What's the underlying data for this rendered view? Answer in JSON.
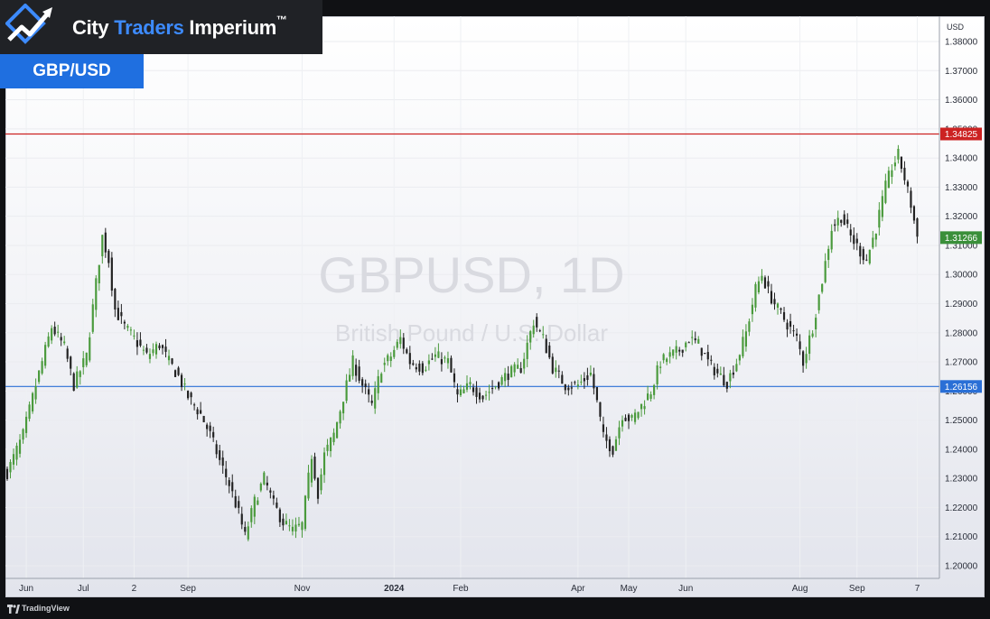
{
  "brand": {
    "name_part1": "City ",
    "name_accent": "Traders",
    "name_part2": " Imperium",
    "trademark": "™",
    "accent_color": "#3d8bff"
  },
  "pair_badge": "GBP/USD",
  "footer": {
    "platform": "TradingView"
  },
  "watermark": {
    "symbol": "GBPUSD, 1D",
    "description": "British Pound / U.S. Dollar"
  },
  "chart_data": {
    "type": "candlestick",
    "y_axis": {
      "unit": "USD",
      "ylim": [
        1.195,
        1.388
      ],
      "ticks": [
        "1.38000",
        "1.37000",
        "1.36000",
        "1.35000",
        "1.34000",
        "1.33000",
        "1.32000",
        "1.31000",
        "1.30000",
        "1.29000",
        "1.28000",
        "1.27000",
        "1.26000",
        "1.25000",
        "1.24000",
        "1.23000",
        "1.22000",
        "1.21000",
        "1.20000"
      ]
    },
    "x_axis": {
      "labels": [
        {
          "text": "Jun",
          "t": 6
        },
        {
          "text": "Jul",
          "t": 24
        },
        {
          "text": "2",
          "t": 40
        },
        {
          "text": "Sep",
          "t": 57
        },
        {
          "text": "Nov",
          "t": 93
        },
        {
          "text": "2024",
          "t": 122
        },
        {
          "text": "Feb",
          "t": 143
        },
        {
          "text": "Apr",
          "t": 180
        },
        {
          "text": "May",
          "t": 196
        },
        {
          "text": "Jun",
          "t": 214
        },
        {
          "text": "Aug",
          "t": 250
        },
        {
          "text": "Sep",
          "t": 268
        },
        {
          "text": "7",
          "t": 287
        }
      ],
      "t_max": 290
    },
    "horizontal_lines": [
      {
        "value": 1.34825,
        "label": "1.34825",
        "color": "#cc2222"
      },
      {
        "value": 1.26156,
        "label": "1.26156",
        "color": "#2a6fd6"
      }
    ],
    "last_price": {
      "value": 1.31266,
      "label": "1.31266",
      "color": "#3a8f3a"
    },
    "up_color": "#4a9a3c",
    "down_color": "#222222",
    "close_keypoints": [
      [
        0,
        1.232
      ],
      [
        5,
        1.245
      ],
      [
        9,
        1.262
      ],
      [
        14,
        1.282
      ],
      [
        18,
        1.275
      ],
      [
        21,
        1.262
      ],
      [
        25,
        1.272
      ],
      [
        28,
        1.297
      ],
      [
        30,
        1.313
      ],
      [
        32,
        1.305
      ],
      [
        34,
        1.288
      ],
      [
        37,
        1.282
      ],
      [
        40,
        1.278
      ],
      [
        44,
        1.272
      ],
      [
        48,
        1.276
      ],
      [
        51,
        1.27
      ],
      [
        54,
        1.265
      ],
      [
        57,
        1.258
      ],
      [
        61,
        1.252
      ],
      [
        64,
        1.245
      ],
      [
        67,
        1.236
      ],
      [
        70,
        1.228
      ],
      [
        73,
        1.218
      ],
      [
        75,
        1.21
      ],
      [
        78,
        1.222
      ],
      [
        81,
        1.23
      ],
      [
        84,
        1.221
      ],
      [
        87,
        1.215
      ],
      [
        90,
        1.212
      ],
      [
        93,
        1.214
      ],
      [
        96,
        1.238
      ],
      [
        98,
        1.225
      ],
      [
        100,
        1.238
      ],
      [
        103,
        1.245
      ],
      [
        106,
        1.258
      ],
      [
        109,
        1.27
      ],
      [
        112,
        1.262
      ],
      [
        115,
        1.255
      ],
      [
        118,
        1.268
      ],
      [
        121,
        1.272
      ],
      [
        124,
        1.278
      ],
      [
        127,
        1.27
      ],
      [
        131,
        1.268
      ],
      [
        135,
        1.272
      ],
      [
        139,
        1.27
      ],
      [
        142,
        1.258
      ],
      [
        146,
        1.262
      ],
      [
        150,
        1.258
      ],
      [
        154,
        1.262
      ],
      [
        158,
        1.266
      ],
      [
        162,
        1.268
      ],
      [
        166,
        1.284
      ],
      [
        169,
        1.278
      ],
      [
        172,
        1.268
      ],
      [
        176,
        1.262
      ],
      [
        180,
        1.262
      ],
      [
        184,
        1.266
      ],
      [
        186,
        1.256
      ],
      [
        188,
        1.244
      ],
      [
        191,
        1.24
      ],
      [
        194,
        1.252
      ],
      [
        197,
        1.25
      ],
      [
        200,
        1.255
      ],
      [
        203,
        1.26
      ],
      [
        206,
        1.27
      ],
      [
        209,
        1.272
      ],
      [
        212,
        1.274
      ],
      [
        215,
        1.278
      ],
      [
        218,
        1.276
      ],
      [
        221,
        1.27
      ],
      [
        224,
        1.266
      ],
      [
        227,
        1.263
      ],
      [
        230,
        1.27
      ],
      [
        233,
        1.28
      ],
      [
        236,
        1.295
      ],
      [
        238,
        1.3
      ],
      [
        240,
        1.294
      ],
      [
        243,
        1.288
      ],
      [
        246,
        1.283
      ],
      [
        249,
        1.278
      ],
      [
        251,
        1.27
      ],
      [
        254,
        1.282
      ],
      [
        257,
        1.298
      ],
      [
        260,
        1.316
      ],
      [
        263,
        1.32
      ],
      [
        266,
        1.313
      ],
      [
        269,
        1.308
      ],
      [
        271,
        1.305
      ],
      [
        274,
        1.316
      ],
      [
        277,
        1.33
      ],
      [
        279,
        1.337
      ],
      [
        281,
        1.341
      ],
      [
        283,
        1.333
      ],
      [
        285,
        1.324
      ],
      [
        287,
        1.313
      ]
    ]
  }
}
